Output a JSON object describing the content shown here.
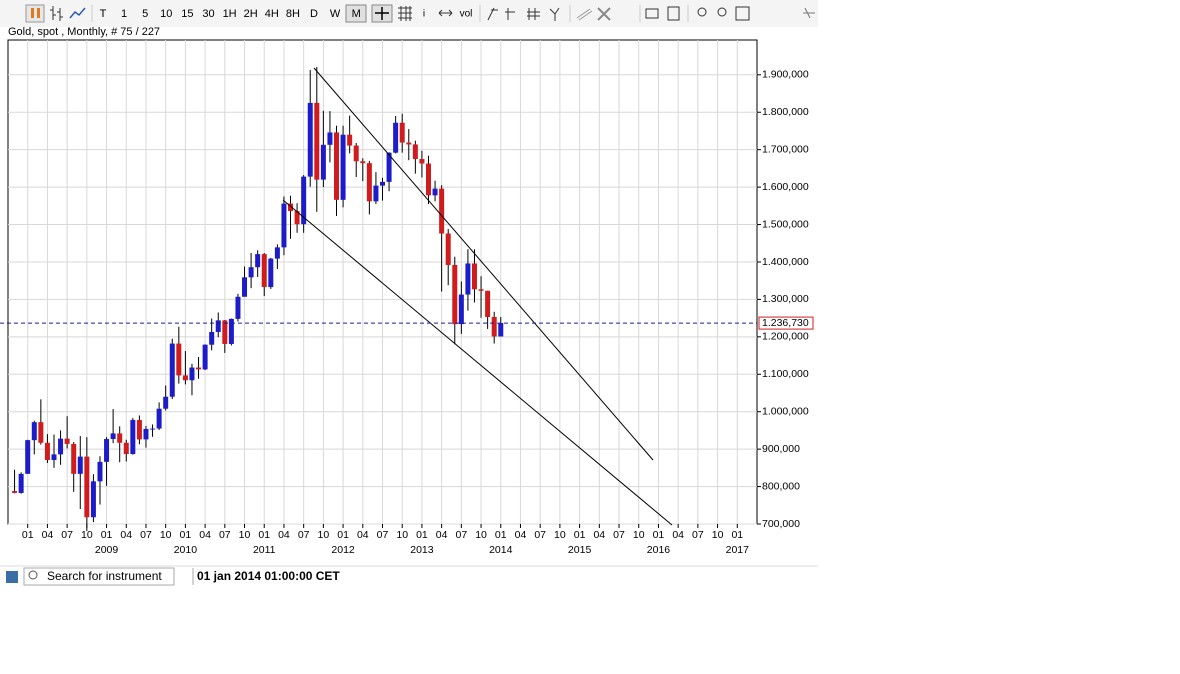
{
  "toolbar": {
    "timeframes": [
      "T",
      "1",
      "5",
      "10",
      "15",
      "30",
      "1H",
      "2H",
      "4H",
      "8H",
      "D",
      "W",
      "M"
    ],
    "active_timeframe": 12,
    "tool_labels": [
      "i",
      "vol"
    ]
  },
  "chart_data": {
    "type": "candlestick",
    "title": "Gold, spot , Monthly, # 75 / 227",
    "x": [
      "2007-11",
      "2007-12",
      "2008-01",
      "2008-02",
      "2008-03",
      "2008-04",
      "2008-05",
      "2008-06",
      "2008-07",
      "2008-08",
      "2008-09",
      "2008-10",
      "2008-11",
      "2008-12",
      "2009-01",
      "2009-02",
      "2009-03",
      "2009-04",
      "2009-05",
      "2009-06",
      "2009-07",
      "2009-08",
      "2009-09",
      "2009-10",
      "2009-11",
      "2009-12",
      "2010-01",
      "2010-02",
      "2010-03",
      "2010-04",
      "2010-05",
      "2010-06",
      "2010-07",
      "2010-08",
      "2010-09",
      "2010-10",
      "2010-11",
      "2010-12",
      "2011-01",
      "2011-02",
      "2011-03",
      "2011-04",
      "2011-05",
      "2011-06",
      "2011-07",
      "2011-08",
      "2011-09",
      "2011-10",
      "2011-11",
      "2011-12",
      "2012-01",
      "2012-02",
      "2012-03",
      "2012-04",
      "2012-05",
      "2012-06",
      "2012-07",
      "2012-08",
      "2012-09",
      "2012-10",
      "2012-11",
      "2012-12",
      "2013-01",
      "2013-02",
      "2013-03",
      "2013-04",
      "2013-05",
      "2013-06",
      "2013-07",
      "2013-08",
      "2013-09",
      "2013-10",
      "2013-11",
      "2013-12",
      "2014-01"
    ],
    "open": [
      788,
      783,
      834,
      924,
      972,
      917,
      871,
      886,
      928,
      914,
      834,
      880,
      718,
      814,
      866,
      927,
      942,
      917,
      887,
      978,
      926,
      954,
      955,
      1008,
      1040,
      1182,
      1097,
      1084,
      1118,
      1113,
      1179,
      1213,
      1244,
      1181,
      1248,
      1307,
      1359,
      1386,
      1421,
      1333,
      1409,
      1439,
      1556,
      1536,
      1501,
      1628,
      1825,
      1620,
      1713,
      1746,
      1566,
      1740,
      1711,
      1669,
      1664,
      1562,
      1604,
      1614,
      1692,
      1772,
      1719,
      1714,
      1675,
      1663,
      1578,
      1596,
      1476,
      1392,
      1234,
      1313,
      1396,
      1327,
      1323,
      1253,
      1201
    ],
    "high": [
      845,
      838,
      925,
      976,
      1033,
      940,
      939,
      950,
      988,
      919,
      935,
      932,
      833,
      881,
      932,
      1007,
      961,
      925,
      983,
      990,
      962,
      966,
      1025,
      1070,
      1195,
      1227,
      1162,
      1128,
      1146,
      1180,
      1249,
      1265,
      1245,
      1249,
      1315,
      1388,
      1424,
      1431,
      1424,
      1411,
      1447,
      1575,
      1577,
      1557,
      1632,
      1913,
      1921,
      1804,
      1803,
      1764,
      1764,
      1791,
      1718,
      1677,
      1670,
      1640,
      1625,
      1693,
      1790,
      1796,
      1755,
      1724,
      1697,
      1684,
      1617,
      1605,
      1488,
      1414,
      1348,
      1434,
      1434,
      1362,
      1323,
      1267,
      1253
    ],
    "low": [
      782,
      781,
      834,
      886,
      912,
      863,
      850,
      858,
      902,
      786,
      740,
      681,
      705,
      752,
      802,
      916,
      865,
      867,
      885,
      913,
      904,
      933,
      951,
      1003,
      1034,
      1075,
      1073,
      1044,
      1088,
      1111,
      1164,
      1199,
      1157,
      1177,
      1241,
      1314,
      1330,
      1360,
      1309,
      1328,
      1381,
      1418,
      1462,
      1478,
      1478,
      1601,
      1534,
      1600,
      1666,
      1523,
      1546,
      1690,
      1627,
      1616,
      1527,
      1555,
      1564,
      1589,
      1690,
      1692,
      1672,
      1636,
      1626,
      1555,
      1562,
      1321,
      1338,
      1180,
      1208,
      1270,
      1292,
      1251,
      1221,
      1182,
      1201
    ],
    "close": [
      783,
      834,
      924,
      972,
      917,
      871,
      886,
      928,
      914,
      834,
      880,
      718,
      814,
      866,
      927,
      942,
      917,
      887,
      978,
      926,
      954,
      955,
      1008,
      1040,
      1182,
      1097,
      1084,
      1118,
      1113,
      1179,
      1213,
      1244,
      1181,
      1248,
      1307,
      1359,
      1386,
      1421,
      1333,
      1409,
      1439,
      1556,
      1536,
      1501,
      1628,
      1825,
      1620,
      1713,
      1746,
      1566,
      1740,
      1711,
      1669,
      1664,
      1562,
      1604,
      1614,
      1692,
      1772,
      1719,
      1714,
      1675,
      1663,
      1578,
      1596,
      1476,
      1392,
      1234,
      1313,
      1396,
      1327,
      1323,
      1253,
      1201,
      1237
    ],
    "up_color": "#1c1cc8",
    "down_color": "#d01c1c",
    "xlim": [
      "2007-10",
      "2017-04"
    ],
    "xticks": [
      {
        "value": "2008-01",
        "label": "01"
      },
      {
        "value": "2008-04",
        "label": "04"
      },
      {
        "value": "2008-07",
        "label": "07"
      },
      {
        "value": "2008-10",
        "label": "10"
      },
      {
        "value": "2009-01",
        "label": "01"
      },
      {
        "value": "2009-04",
        "label": "04"
      },
      {
        "value": "2009-07",
        "label": "07"
      },
      {
        "value": "2009-10",
        "label": "10"
      },
      {
        "value": "2010-01",
        "label": "01"
      },
      {
        "value": "2010-04",
        "label": "04"
      },
      {
        "value": "2010-07",
        "label": "07"
      },
      {
        "value": "2010-10",
        "label": "10"
      },
      {
        "value": "2011-01",
        "label": "01"
      },
      {
        "value": "2011-04",
        "label": "04"
      },
      {
        "value": "2011-07",
        "label": "07"
      },
      {
        "value": "2011-10",
        "label": "10"
      },
      {
        "value": "2012-01",
        "label": "01"
      },
      {
        "value": "2012-04",
        "label": "04"
      },
      {
        "value": "2012-07",
        "label": "07"
      },
      {
        "value": "2012-10",
        "label": "10"
      },
      {
        "value": "2013-01",
        "label": "01"
      },
      {
        "value": "2013-04",
        "label": "04"
      },
      {
        "value": "2013-07",
        "label": "07"
      },
      {
        "value": "2013-10",
        "label": "10"
      },
      {
        "value": "2014-01",
        "label": "01"
      },
      {
        "value": "2014-04",
        "label": "04"
      },
      {
        "value": "2014-07",
        "label": "07"
      },
      {
        "value": "2014-10",
        "label": "10"
      },
      {
        "value": "2015-01",
        "label": "01"
      },
      {
        "value": "2015-04",
        "label": "04"
      },
      {
        "value": "2015-07",
        "label": "07"
      },
      {
        "value": "2015-10",
        "label": "10"
      },
      {
        "value": "2016-01",
        "label": "01"
      },
      {
        "value": "2016-04",
        "label": "04"
      },
      {
        "value": "2016-07",
        "label": "07"
      },
      {
        "value": "2016-10",
        "label": "10"
      },
      {
        "value": "2017-01",
        "label": "01"
      }
    ],
    "year_labels": [
      {
        "value": "2009-01",
        "label": "2009"
      },
      {
        "value": "2010-01",
        "label": "2010"
      },
      {
        "value": "2011-01",
        "label": "2011"
      },
      {
        "value": "2012-01",
        "label": "2012"
      },
      {
        "value": "2013-01",
        "label": "2013"
      },
      {
        "value": "2014-01",
        "label": "2014"
      },
      {
        "value": "2015-01",
        "label": "2015"
      },
      {
        "value": "2016-01",
        "label": "2016"
      },
      {
        "value": "2017-01",
        "label": "2017"
      }
    ],
    "ylim": [
      700,
      1993
    ],
    "yticks": [
      {
        "value": 700,
        "label": "700,000"
      },
      {
        "value": 800,
        "label": "800,000"
      },
      {
        "value": 900,
        "label": "900,000"
      },
      {
        "value": 1000,
        "label": "1.000,000"
      },
      {
        "value": 1100,
        "label": "1.100,000"
      },
      {
        "value": 1200,
        "label": "1.200,000"
      },
      {
        "value": 1300,
        "label": "1.300,000"
      },
      {
        "value": 1400,
        "label": "1.400,000"
      },
      {
        "value": 1500,
        "label": "1.500,000"
      },
      {
        "value": 1600,
        "label": "1.600,000"
      },
      {
        "value": 1700,
        "label": "1.700,000"
      },
      {
        "value": 1800,
        "label": "1.800,000"
      },
      {
        "value": 1900,
        "label": "1.900,000"
      }
    ],
    "current_price": {
      "value": 1236.73,
      "label": "1.236,730"
    },
    "grid": true
  },
  "status_bar": {
    "search_placeholder": "Search for instrument",
    "timestamp": "01 jan 2014 01:00:00 CET"
  }
}
